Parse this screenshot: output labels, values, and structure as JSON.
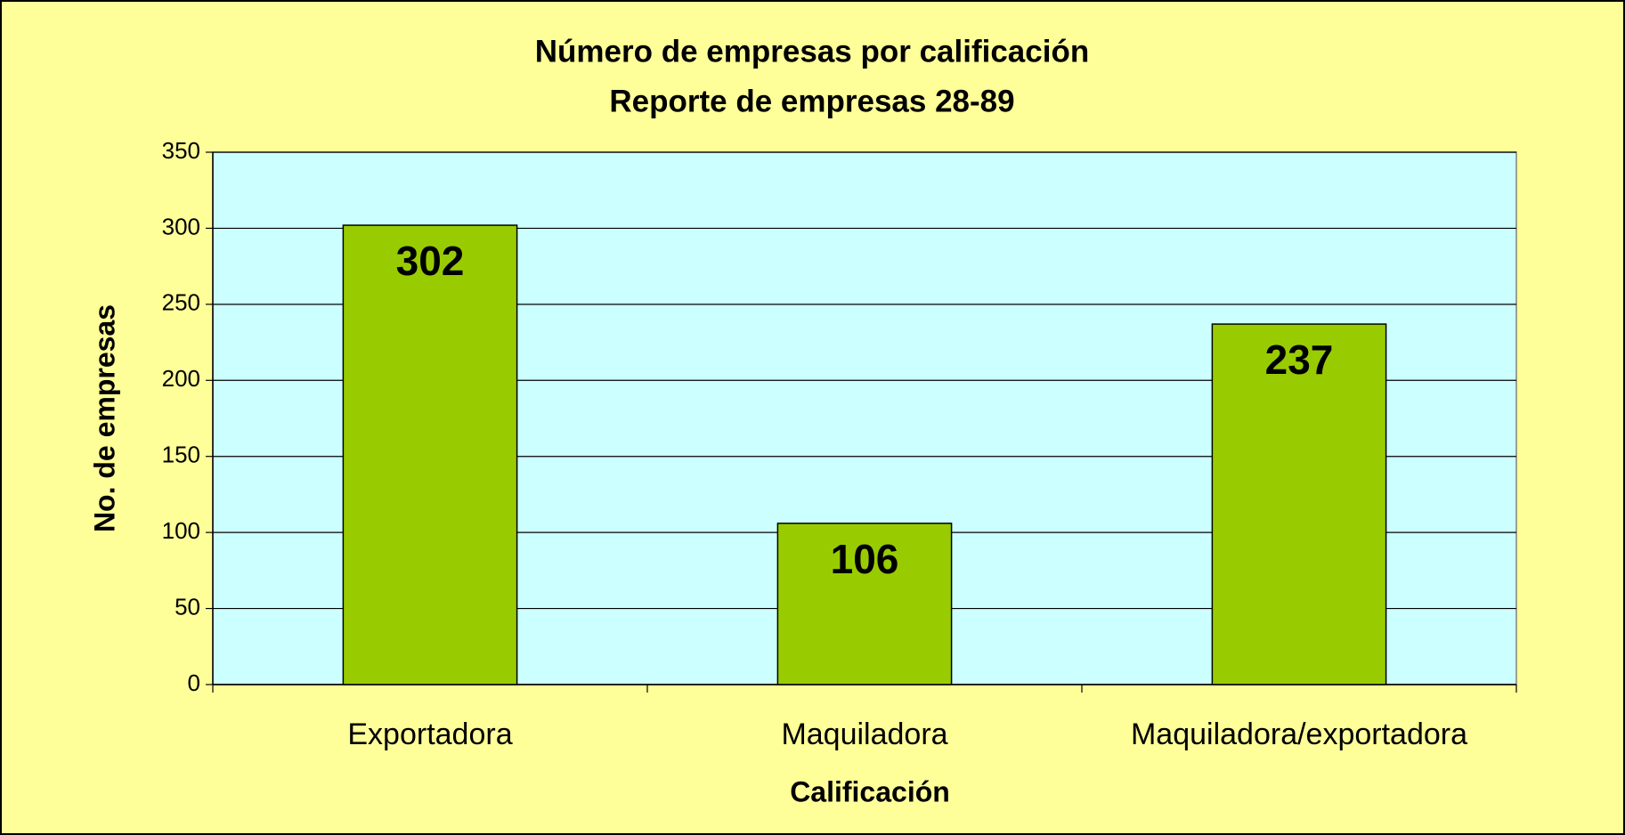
{
  "chart_data": {
    "type": "bar",
    "title": "Número de empresas por calificación",
    "subtitle": "Reporte de empresas 28-89",
    "x_label": "Calificación",
    "y_label": "No. de empresas",
    "categories": [
      "Exportadora",
      "Maquiladora",
      "Maquiladora/exportadora"
    ],
    "values": [
      302,
      106,
      237
    ],
    "color": "#99cc00",
    "ylim": [
      0,
      350
    ],
    "yticks": [
      0,
      50,
      100,
      150,
      200,
      250,
      300,
      350
    ],
    "grid": true
  }
}
